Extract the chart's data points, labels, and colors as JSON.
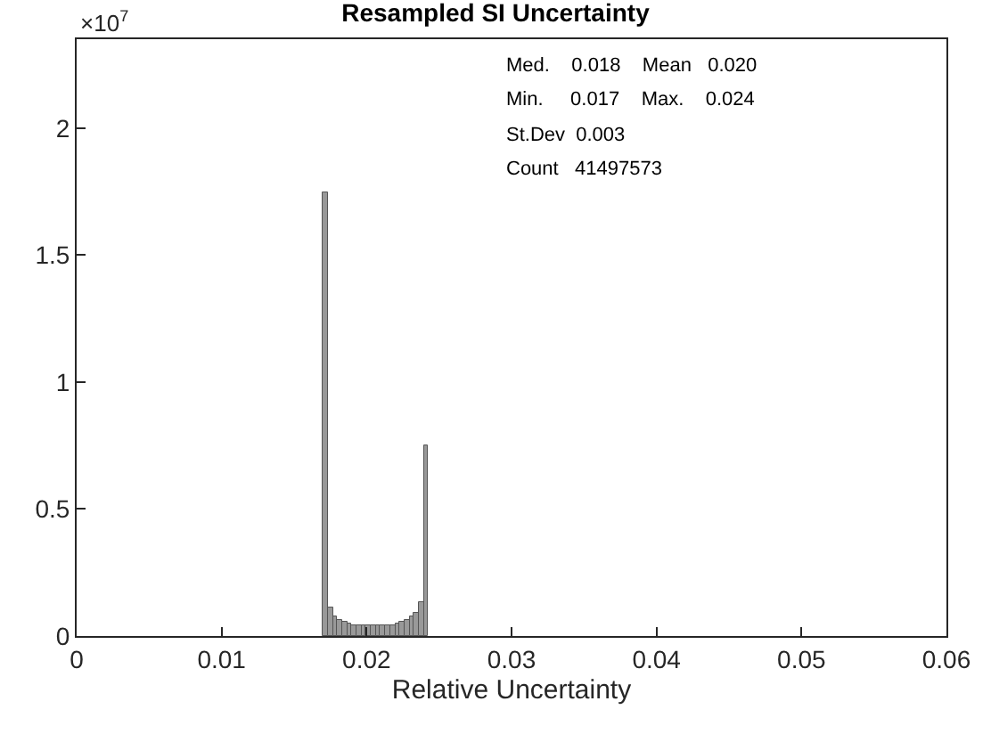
{
  "chart_data": {
    "type": "histogram",
    "title": "Resampled SI Uncertainty",
    "xlabel": "Relative Uncertainty",
    "bins": [
      0.017,
      0.01733,
      0.01766,
      0.01799,
      0.01832,
      0.01865,
      0.01898,
      0.01931,
      0.01964,
      0.01997,
      0.0203,
      0.02063,
      0.02096,
      0.02129,
      0.02162,
      0.02195,
      0.02228,
      0.02261,
      0.02294,
      0.02327,
      0.0236,
      0.02393,
      0.02426
    ],
    "values": [
      1.75,
      0.11,
      0.08,
      0.065,
      0.055,
      0.05,
      0.045,
      0.04,
      0.04,
      0.04,
      0.04,
      0.04,
      0.04,
      0.04,
      0.045,
      0.05,
      0.055,
      0.065,
      0.075,
      0.09,
      0.13,
      0.75
    ],
    "color": "#999999",
    "xlim": [
      0,
      0.06
    ],
    "xticks": [
      0,
      0.01,
      0.02,
      0.03,
      0.04,
      0.05,
      0.06
    ],
    "ylim": [
      0,
      2.35
    ],
    "yticks": [
      0,
      0.5,
      1,
      1.5,
      2
    ],
    "annotations": [
      "×10$^{7}$",
      "Med.    0.018    Mean   0.020",
      "Min.     0.017    Max.    0.024",
      "St.Dev  0.003",
      "Count   41497573"
    ]
  }
}
